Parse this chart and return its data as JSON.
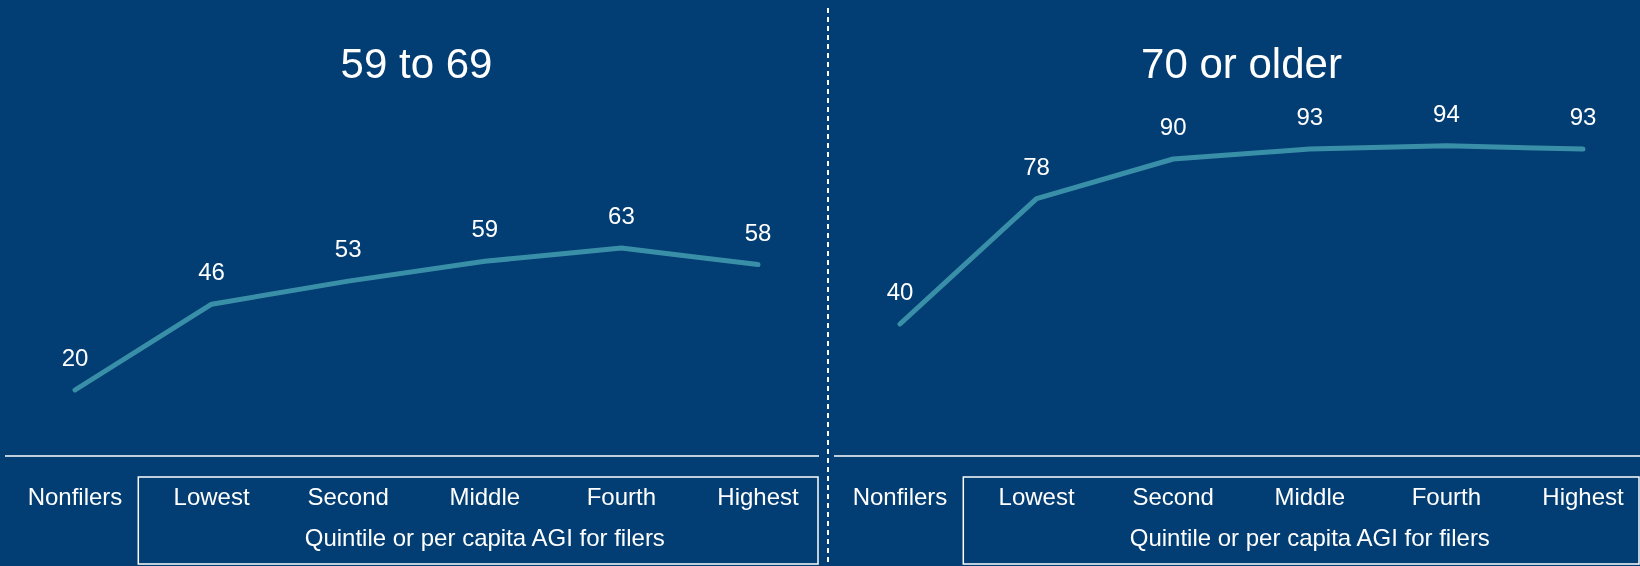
{
  "chart_data": [
    {
      "type": "line",
      "title": "59 to 69",
      "xlabel": "Quintile or per capita AGI for filers",
      "categories": [
        "Nonfilers",
        "Lowest",
        "Second",
        "Middle",
        "Fourth",
        "Highest"
      ],
      "data_labels": true,
      "tick_labels": "x",
      "marker": "none",
      "series": [
        {
          "color": "#3a8fa8",
          "values": [
            20,
            46,
            53,
            59,
            63,
            58
          ]
        }
      ]
    },
    {
      "type": "line",
      "title": "70 or older",
      "xlabel": "Quintile or per capita AGI for filers",
      "categories": [
        "Nonfilers",
        "Lowest",
        "Second",
        "Middle",
        "Fourth",
        "Highest"
      ],
      "data_labels": true,
      "tick_labels": "x",
      "marker": "none",
      "series": [
        {
          "color": "#3a8fa8",
          "values": [
            40,
            78,
            90,
            93,
            94,
            93
          ]
        }
      ]
    }
  ]
}
